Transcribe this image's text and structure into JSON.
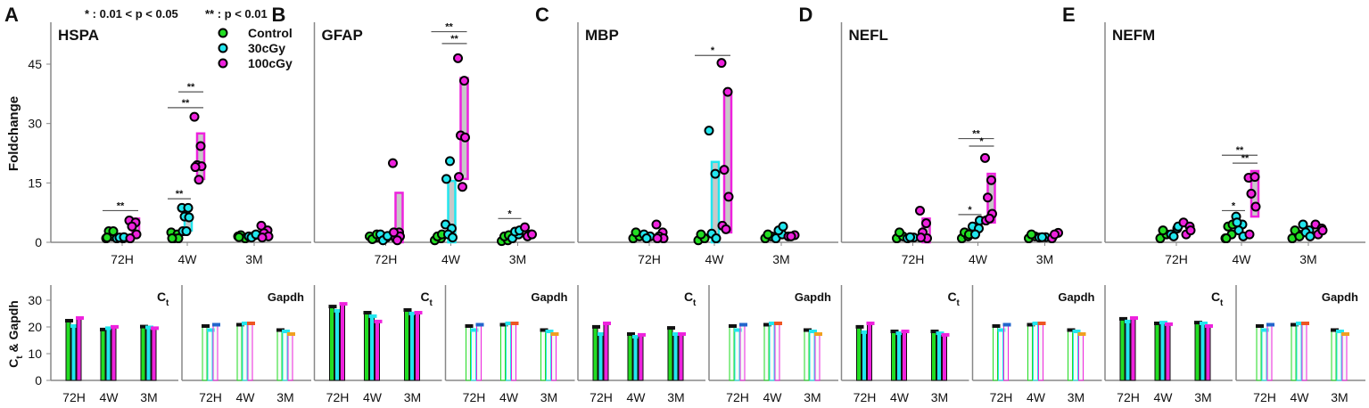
{
  "header": {
    "p_legend_single": "* : 0.01 < p < 0.05",
    "p_legend_double": "** : p < 0.01"
  },
  "colors": {
    "Control": "#22dd22",
    "30cGy": "#22e6ee",
    "100cGy": "#ee22dd",
    "box_fill": "#c8c8c8"
  },
  "chart_data": {
    "type": "scatter",
    "groups": [
      "Control",
      "30cGy",
      "100cGy"
    ],
    "timepoints": [
      "72H",
      "4W",
      "3M"
    ],
    "top_ylabel": "Foldchange",
    "top_yticks": [
      0,
      15,
      30,
      45
    ],
    "top_ylim": [
      0,
      55
    ],
    "bottom_ylabel": "Ct & Gapdh",
    "bottom_ylabel_parts": {
      "main": "C",
      "sub": "t",
      "rest": " & Gapdh"
    },
    "bottom_yticks": [
      0,
      10,
      20,
      30
    ],
    "bottom_ylim": [
      0,
      35
    ],
    "bottom_titles": {
      "ct_main": "C",
      "ct_sub": "t",
      "gapdh": "Gapdh"
    },
    "gapdh": {
      "values": [
        [
          20,
          18.5,
          20.5
        ],
        [
          20.5,
          21,
          21
        ],
        [
          18.5,
          18,
          17
        ]
      ],
      "cap_colors": [
        [
          "#111111",
          "#22e6ee",
          "#2266cc"
        ],
        [
          "#111111",
          "#22e6ee",
          "#ee5522"
        ],
        [
          "#111111",
          "#22e6ee",
          "#f0a020"
        ]
      ]
    },
    "panels": [
      {
        "letter": "A",
        "gene": "HSPA",
        "points": [
          [
            [
              1,
              1.5,
              2.8,
              2.8,
              1.2
            ],
            [
              1,
              1,
              1.2,
              1.3
            ],
            [
              5.5,
              5,
              4,
              2,
              1
            ]
          ],
          [
            [
              2.5,
              2,
              1,
              1,
              1
            ],
            [
              8.7,
              8.7,
              6.5,
              6.3,
              2.8,
              2.8
            ],
            [
              31.7,
              24.3,
              19.5,
              19.2,
              19,
              15.8
            ]
          ],
          [
            [
              1.5,
              1.2,
              1.8,
              1,
              1.3
            ],
            [
              1.5,
              1.8,
              1.2,
              2
            ],
            [
              4.2,
              3,
              2.3,
              1.5,
              1.2
            ]
          ]
        ],
        "boxes": [
          [
            null,
            null,
            [
              2,
              6
            ]
          ],
          [
            null,
            [
              3,
              7
            ],
            [
              16,
              27.5
            ]
          ],
          [
            null,
            null,
            null
          ]
        ],
        "sig": [
          {
            "t": 0,
            "from": 0,
            "to": 2,
            "y": 8,
            "label": "**"
          },
          {
            "t": 1,
            "from": 0,
            "to": 1,
            "y": 11,
            "label": "**"
          },
          {
            "t": 1,
            "from": 0,
            "to": 2,
            "y": 34,
            "label": "**"
          },
          {
            "t": 1,
            "from": 1,
            "to": 2,
            "y": 38,
            "label": "**"
          }
        ],
        "ct": [
          [
            22,
            20,
            23
          ],
          [
            18.7,
            19.2,
            19.7
          ],
          [
            19.8,
            19.5,
            19.2
          ]
        ]
      },
      {
        "letter": "B",
        "gene": "GFAP",
        "points": [
          [
            [
              1.5,
              1.2,
              0.8,
              2
            ],
            [
              2,
              1.2,
              0.5,
              1.6
            ],
            [
              20,
              2.5,
              1,
              1.5,
              2.5,
              0.5
            ]
          ],
          [
            [
              0.5,
              1,
              1.5,
              2
            ],
            [
              4.5,
              3.5,
              2,
              1.2,
              16,
              20.5
            ],
            [
              46.5,
              40.8,
              27,
              26.5,
              16.5,
              14
            ]
          ],
          [
            [
              0.3,
              0.5,
              1.5,
              1.8
            ],
            [
              1,
              2,
              2.7,
              3
            ],
            [
              3.8,
              2,
              1.5,
              2
            ]
          ]
        ],
        "boxes": [
          [
            null,
            null,
            [
              0,
              12.5
            ]
          ],
          [
            null,
            [
              0,
              15.5
            ],
            [
              16,
              41.5
            ]
          ],
          [
            null,
            null,
            null
          ]
        ],
        "sig": [
          {
            "t": 1,
            "from": 0,
            "to": 2,
            "y": 53.2,
            "label": "**"
          },
          {
            "t": 1,
            "from": 1,
            "to": 2,
            "y": 50.2,
            "label": "**"
          },
          {
            "t": 2,
            "from": 0,
            "to": 1,
            "y": 6,
            "label": "*"
          }
        ],
        "ct": [
          [
            27.3,
            25.7,
            28.3
          ],
          [
            25,
            23.7,
            21.7
          ],
          [
            26,
            24.7,
            25
          ]
        ]
      },
      {
        "letter": "C",
        "gene": "MBP",
        "points": [
          [
            [
              1,
              1.5,
              2.5
            ],
            [
              2,
              1.5,
              1
            ],
            [
              4.5,
              2.5,
              1.5,
              1,
              1
            ]
          ],
          [
            [
              0.5,
              1,
              2
            ],
            [
              28.2,
              17.3,
              2.2,
              1
            ],
            [
              45.3,
              38,
              18.3,
              11.5,
              4.2,
              3.3
            ]
          ],
          [
            [
              1,
              1.5,
              2
            ],
            [
              1,
              2,
              3,
              4
            ],
            [
              1.5,
              1.8,
              1.5
            ]
          ]
        ],
        "boxes": [
          [
            null,
            null,
            null
          ],
          [
            null,
            [
              0,
              20.3
            ],
            [
              2.5,
              38
            ]
          ],
          [
            null,
            null,
            null
          ]
        ],
        "sig": [
          {
            "t": 1,
            "from": 0,
            "to": 2,
            "y": 47.2,
            "label": "*"
          }
        ],
        "ct": [
          [
            19.7,
            17,
            21
          ],
          [
            17,
            16,
            16.7
          ],
          [
            19.3,
            17,
            17
          ]
        ]
      },
      {
        "letter": "D",
        "gene": "NEFL",
        "points": [
          [
            [
              1,
              1.5,
              2.5
            ],
            [
              1,
              1.2,
              1.3
            ],
            [
              8,
              4.8,
              2.5,
              1,
              1.2
            ]
          ],
          [
            [
              1,
              1.5,
              2.5,
              2
            ],
            [
              4,
              3.5,
              2,
              5.5
            ],
            [
              21.3,
              15.7,
              11.3,
              7.2,
              5.5,
              6
            ]
          ],
          [
            [
              1,
              1.5,
              2
            ],
            [
              1.2,
              1.3,
              1.3
            ],
            [
              1,
              2.4,
              2
            ]
          ]
        ],
        "boxes": [
          [
            null,
            null,
            [
              0,
              6
            ]
          ],
          [
            null,
            null,
            [
              5,
              17.3
            ]
          ],
          [
            null,
            null,
            null
          ]
        ],
        "sig": [
          {
            "t": 1,
            "from": 0,
            "to": 1,
            "y": 7,
            "label": "*"
          },
          {
            "t": 1,
            "from": 0,
            "to": 2,
            "y": 26.2,
            "label": "**"
          },
          {
            "t": 1,
            "from": 1,
            "to": 2,
            "y": 24.3,
            "label": "*"
          }
        ],
        "ct": [
          [
            19.7,
            17.7,
            21
          ],
          [
            18,
            17.3,
            18
          ],
          [
            18,
            17.3,
            16.7
          ]
        ]
      },
      {
        "letter": "E",
        "gene": "NEFM",
        "points": [
          [
            [
              1,
              2,
              3
            ],
            [
              2,
              3.5,
              1.5,
              4
            ],
            [
              5,
              4,
              2,
              3
            ]
          ],
          [
            [
              1,
              2,
              4,
              4.5,
              1
            ],
            [
              6.5,
              4.5,
              3,
              1.5,
              5
            ],
            [
              16.3,
              16.5,
              12.3,
              9,
              2
            ]
          ],
          [
            [
              1,
              2,
              3,
              1.5
            ],
            [
              4.5,
              3,
              2.5,
              1.5
            ],
            [
              4.5,
              3.5,
              2,
              3
            ]
          ]
        ],
        "boxes": [
          [
            null,
            null,
            null
          ],
          [
            null,
            null,
            [
              6.5,
              18
            ]
          ],
          [
            null,
            null,
            null
          ]
        ],
        "sig": [
          {
            "t": 1,
            "from": 0,
            "to": 1,
            "y": 8,
            "label": "*"
          },
          {
            "t": 1,
            "from": 0,
            "to": 2,
            "y": 22,
            "label": "**"
          },
          {
            "t": 1,
            "from": 1,
            "to": 2,
            "y": 20,
            "label": "**"
          }
        ],
        "ct": [
          [
            22.7,
            21.7,
            23
          ],
          [
            21,
            21.3,
            20.7
          ],
          [
            21.3,
            21,
            20
          ]
        ]
      }
    ]
  }
}
